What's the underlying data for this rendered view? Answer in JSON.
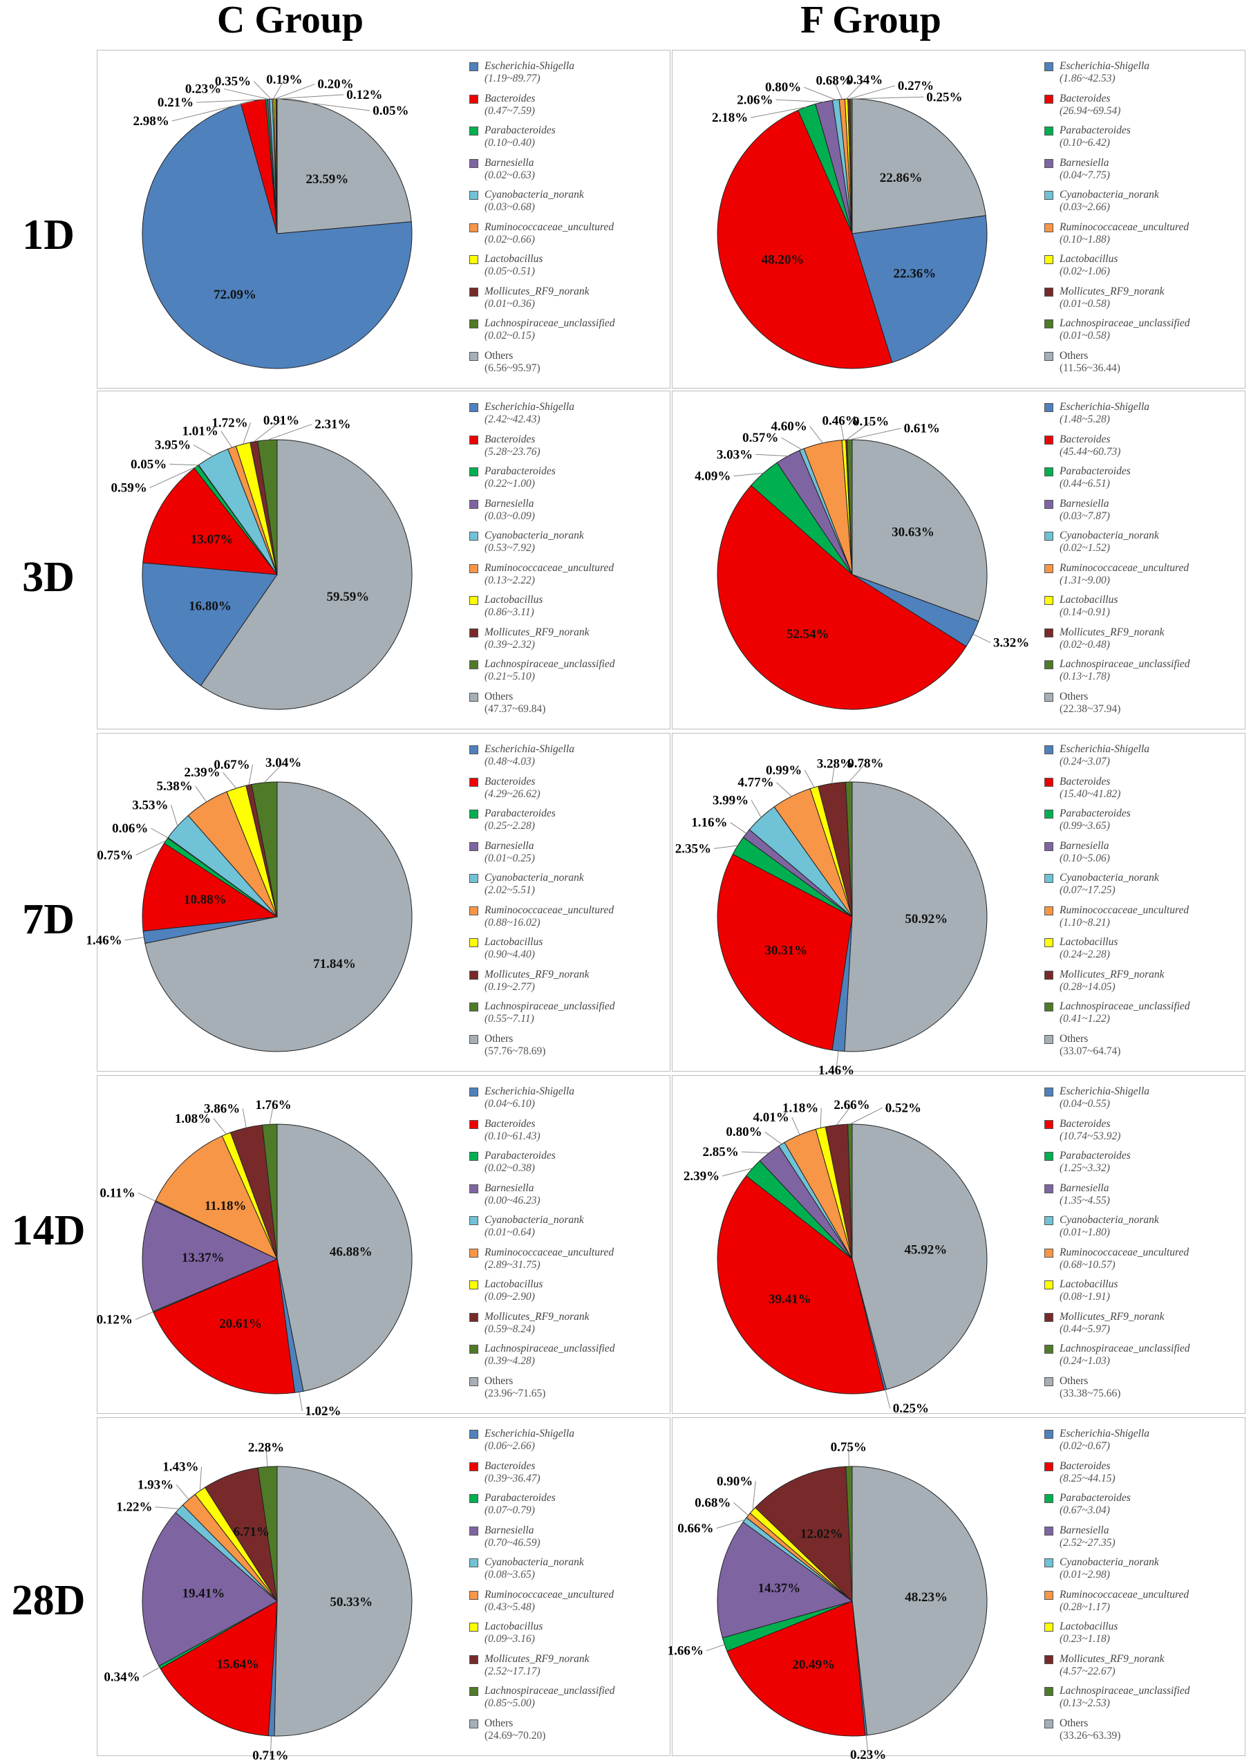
{
  "group_titles": [
    "C Group",
    "F Group"
  ],
  "row_labels": [
    "1D",
    "3D",
    "7D",
    "14D",
    "28D"
  ],
  "colors": {
    "Escherichia-Shigella": "#4f81bd",
    "Bacteroides": "#ee0000",
    "Parabacteroides": "#00b050",
    "Barnesiella": "#7f64a2",
    "Cyanobacteria_norank": "#70c2d6",
    "Ruminococcaceae_uncultured": "#f79646",
    "Lactobacillus": "#ffff00",
    "Mollicutes_RF9_norank": "#782a2a",
    "Lachnospiraceae_unclassified": "#4f7a28",
    "Others": "#a6afb5"
  },
  "chart_data": [
    {
      "type": "pie",
      "group": "C Group",
      "day": "1D",
      "labels": [
        "Escherichia-Shigella",
        "Bacteroides",
        "Parabacteroides",
        "Barnesiella",
        "Cyanobacteria_norank",
        "Ruminococcaceae_uncultured",
        "Lactobacillus",
        "Mollicutes_RF9_norank",
        "Lachnospiraceae_unclassified",
        "Others"
      ],
      "values": [
        72.09,
        2.98,
        0.21,
        0.23,
        0.35,
        0.19,
        0.2,
        0.12,
        0.05,
        23.59
      ],
      "value_labels": [
        "72.09%",
        "2.98%",
        "0.21%",
        "0.23%",
        "0.35%",
        "0.19%",
        "0.20%",
        "0.12%",
        "0.05%",
        "23.59%"
      ],
      "ranges": [
        "(1.19~89.77)",
        "(0.47~7.59)",
        "(0.10~0.40)",
        "(0.02~0.63)",
        "(0.03~0.68)",
        "(0.02~0.66)",
        "(0.05~0.51)",
        "(0.01~0.36)",
        "(0.02~0.15)",
        "(6.56~95.97)"
      ]
    },
    {
      "type": "pie",
      "group": "F Group",
      "day": "1D",
      "labels": [
        "Escherichia-Shigella",
        "Bacteroides",
        "Parabacteroides",
        "Barnesiella",
        "Cyanobacteria_norank",
        "Ruminococcaceae_uncultured",
        "Lactobacillus",
        "Mollicutes_RF9_norank",
        "Lachnospiraceae_unclassified",
        "Others"
      ],
      "values": [
        22.36,
        48.2,
        2.18,
        2.06,
        0.8,
        0.68,
        0.34,
        0.27,
        0.25,
        22.86
      ],
      "value_labels": [
        "22.36%",
        "48.20%",
        "2.18%",
        "2.06%",
        "0.80%",
        "0.68%",
        "0.34%",
        "0.27%",
        "0.25%",
        "22.86%"
      ],
      "ranges": [
        "(1.86~42.53)",
        "(26.94~69.54)",
        "(0.10~6.42)",
        "(0.04~7.75)",
        "(0.03~2.66)",
        "(0.10~1.88)",
        "(0.02~1.06)",
        "(0.01~0.58)",
        "(0.01~0.58)",
        "(11.56~36.44)"
      ]
    },
    {
      "type": "pie",
      "group": "C Group",
      "day": "3D",
      "labels": [
        "Escherichia-Shigella",
        "Bacteroides",
        "Parabacteroides",
        "Barnesiella",
        "Cyanobacteria_norank",
        "Ruminococcaceae_uncultured",
        "Lactobacillus",
        "Mollicutes_RF9_norank",
        "Lachnospiraceae_unclassified",
        "Others"
      ],
      "values": [
        16.8,
        13.07,
        0.59,
        0.05,
        3.95,
        1.01,
        1.72,
        0.91,
        2.31,
        59.59
      ],
      "value_labels": [
        "16.80%",
        "13.07%",
        "0.59%",
        "0.05%",
        "3.95%",
        "1.01%",
        "1.72%",
        "0.91%",
        "2.31%",
        "59.59%"
      ],
      "ranges": [
        "(2.42~42.43)",
        "(5.28~23.76)",
        "(0.22~1.00)",
        "(0.03~0.09)",
        "(0.53~7.92)",
        "(0.13~2.22)",
        "(0.86~3.11)",
        "(0.39~2.32)",
        "(0.21~5.10)",
        "(47.37~69.84)"
      ]
    },
    {
      "type": "pie",
      "group": "F Group",
      "day": "3D",
      "labels": [
        "Escherichia-Shigella",
        "Bacteroides",
        "Parabacteroides",
        "Barnesiella",
        "Cyanobacteria_norank",
        "Ruminococcaceae_uncultured",
        "Lactobacillus",
        "Mollicutes_RF9_norank",
        "Lachnospiraceae_unclassified",
        "Others"
      ],
      "values": [
        3.32,
        52.54,
        4.09,
        3.03,
        0.57,
        4.6,
        0.46,
        0.15,
        0.61,
        30.63
      ],
      "value_labels": [
        "3.32%",
        "52.54%",
        "4.09%",
        "3.03%",
        "0.57%",
        "4.60%",
        "0.46%",
        "0.15%",
        "0.61%",
        "30.63%"
      ],
      "ranges": [
        "(1.48~5.28)",
        "(45.44~60.73)",
        "(0.44~6.51)",
        "(0.03~7.87)",
        "(0.02~1.52)",
        "(1.31~9.00)",
        "(0.14~0.91)",
        "(0.02~0.48)",
        "(0.13~1.78)",
        "(22.38~37.94)"
      ]
    },
    {
      "type": "pie",
      "group": "C Group",
      "day": "7D",
      "labels": [
        "Escherichia-Shigella",
        "Bacteroides",
        "Parabacteroides",
        "Barnesiella",
        "Cyanobacteria_norank",
        "Ruminococcaceae_uncultured",
        "Lactobacillus",
        "Mollicutes_RF9_norank",
        "Lachnospiraceae_unclassified",
        "Others"
      ],
      "values": [
        1.46,
        10.88,
        0.75,
        0.06,
        3.53,
        5.38,
        2.39,
        0.67,
        3.04,
        71.84
      ],
      "value_labels": [
        "1.46%",
        "10.88%",
        "0.75%",
        "0.06%",
        "3.53%",
        "5.38%",
        "2.39%",
        "0.67%",
        "3.04%",
        "71.84%"
      ],
      "ranges": [
        "(0.48~4.03)",
        "(4.29~26.62)",
        "(0.25~2.28)",
        "(0.01~0.25)",
        "(2.02~5.51)",
        "(0.88~16.02)",
        "(0.90~4.40)",
        "(0.19~2.77)",
        "(0.55~7.11)",
        "(57.76~78.69)"
      ]
    },
    {
      "type": "pie",
      "group": "F Group",
      "day": "7D",
      "labels": [
        "Escherichia-Shigella",
        "Bacteroides",
        "Parabacteroides",
        "Barnesiella",
        "Cyanobacteria_norank",
        "Ruminococcaceae_uncultured",
        "Lactobacillus",
        "Mollicutes_RF9_norank",
        "Lachnospiraceae_unclassified",
        "Others"
      ],
      "values": [
        1.46,
        30.31,
        2.35,
        1.16,
        3.99,
        4.77,
        0.99,
        3.28,
        0.78,
        50.92
      ],
      "value_labels": [
        "1.46%",
        "30.31%",
        "2.35%",
        "1.16%",
        "3.99%",
        "4.77%",
        "0.99%",
        "3.28%",
        "0.78%",
        "50.92%"
      ],
      "ranges": [
        "(0.24~3.07)",
        "(15.40~41.82)",
        "(0.99~3.65)",
        "(0.10~5.06)",
        "(0.07~17.25)",
        "(1.10~8.21)",
        "(0.24~2.28)",
        "(0.28~14.05)",
        "(0.41~1.22)",
        "(33.07~64.74)"
      ]
    },
    {
      "type": "pie",
      "group": "C Group",
      "day": "14D",
      "labels": [
        "Escherichia-Shigella",
        "Bacteroides",
        "Parabacteroides",
        "Barnesiella",
        "Cyanobacteria_norank",
        "Ruminococcaceae_uncultured",
        "Lactobacillus",
        "Mollicutes_RF9_norank",
        "Lachnospiraceae_unclassified",
        "Others"
      ],
      "values": [
        1.02,
        20.61,
        0.12,
        13.37,
        0.11,
        11.18,
        1.08,
        3.86,
        1.76,
        46.88
      ],
      "value_labels": [
        "1.02%",
        "20.61%",
        "0.12%",
        "13.37%",
        "0.11%",
        "11.18%",
        "1.08%",
        "3.86%",
        "1.76%",
        "46.88%"
      ],
      "ranges": [
        "(0.04~6.10)",
        "(0.10~61.43)",
        "(0.02~0.38)",
        "(0.00~46.23)",
        "(0.01~0.64)",
        "(2.89~31.75)",
        "(0.09~2.90)",
        "(0.59~8.24)",
        "(0.39~4.28)",
        "(23.96~71.65)"
      ]
    },
    {
      "type": "pie",
      "group": "F Group",
      "day": "14D",
      "labels": [
        "Escherichia-Shigella",
        "Bacteroides",
        "Parabacteroides",
        "Barnesiella",
        "Cyanobacteria_norank",
        "Ruminococcaceae_uncultured",
        "Lactobacillus",
        "Mollicutes_RF9_norank",
        "Lachnospiraceae_unclassified",
        "Others"
      ],
      "values": [
        0.25,
        39.41,
        2.39,
        2.85,
        0.8,
        4.01,
        1.18,
        2.66,
        0.52,
        45.92
      ],
      "value_labels": [
        "0.25%",
        "39.41%",
        "2.39%",
        "2.85%",
        "0.80%",
        "4.01%",
        "1.18%",
        "2.66%",
        "0.52%",
        "45.92%"
      ],
      "ranges": [
        "(0.04~0.55)",
        "(10.74~53.92)",
        "(1.25~3.32)",
        "(1.35~4.55)",
        "(0.01~1.80)",
        "(0.68~10.57)",
        "(0.08~1.91)",
        "(0.44~5.97)",
        "(0.24~1.03)",
        "(33.38~75.66)"
      ]
    },
    {
      "type": "pie",
      "group": "C Group",
      "day": "28D",
      "labels": [
        "Escherichia-Shigella",
        "Bacteroides",
        "Parabacteroides",
        "Barnesiella",
        "Cyanobacteria_norank",
        "Ruminococcaceae_uncultured",
        "Lactobacillus",
        "Mollicutes_RF9_norank",
        "Lachnospiraceae_unclassified",
        "Others"
      ],
      "values": [
        0.71,
        15.64,
        0.34,
        19.41,
        1.22,
        1.93,
        1.43,
        6.71,
        2.28,
        50.33
      ],
      "value_labels": [
        "0.71%",
        "15.64%",
        "0.34%",
        "19.41%",
        "1.22%",
        "1.93%",
        "1.43%",
        "6.71%",
        "2.28%",
        "50.33%"
      ],
      "ranges": [
        "(0.06~2.66)",
        "(0.39~36.47)",
        "(0.07~0.79)",
        "(0.70~46.59)",
        "(0.08~3.65)",
        "(0.43~5.48)",
        "(0.09~3.16)",
        "(2.52~17.17)",
        "(0.85~5.00)",
        "(24.69~70.20)"
      ]
    },
    {
      "type": "pie",
      "group": "F Group",
      "day": "28D",
      "labels": [
        "Escherichia-Shigella",
        "Bacteroides",
        "Parabacteroides",
        "Barnesiella",
        "Cyanobacteria_norank",
        "Ruminococcaceae_uncultured",
        "Lactobacillus",
        "Mollicutes_RF9_norank",
        "Lachnospiraceae_unclassified",
        "Others"
      ],
      "values": [
        0.23,
        20.49,
        1.66,
        14.37,
        0.66,
        0.68,
        0.9,
        12.02,
        0.75,
        48.23
      ],
      "value_labels": [
        "0.23%",
        "20.49%",
        "1.66%",
        "14.37%",
        "0.66%",
        "0.68%",
        "0.90%",
        "12.02%",
        "0.75%",
        "48.23%"
      ],
      "ranges": [
        "(0.02~0.67)",
        "(8.25~44.15)",
        "(0.67~3.04)",
        "(2.52~27.35)",
        "(0.01~2.98)",
        "(0.28~1.17)",
        "(0.23~1.18)",
        "(4.57~22.67)",
        "(0.13~2.53)",
        "(33.26~63.39)"
      ]
    }
  ]
}
